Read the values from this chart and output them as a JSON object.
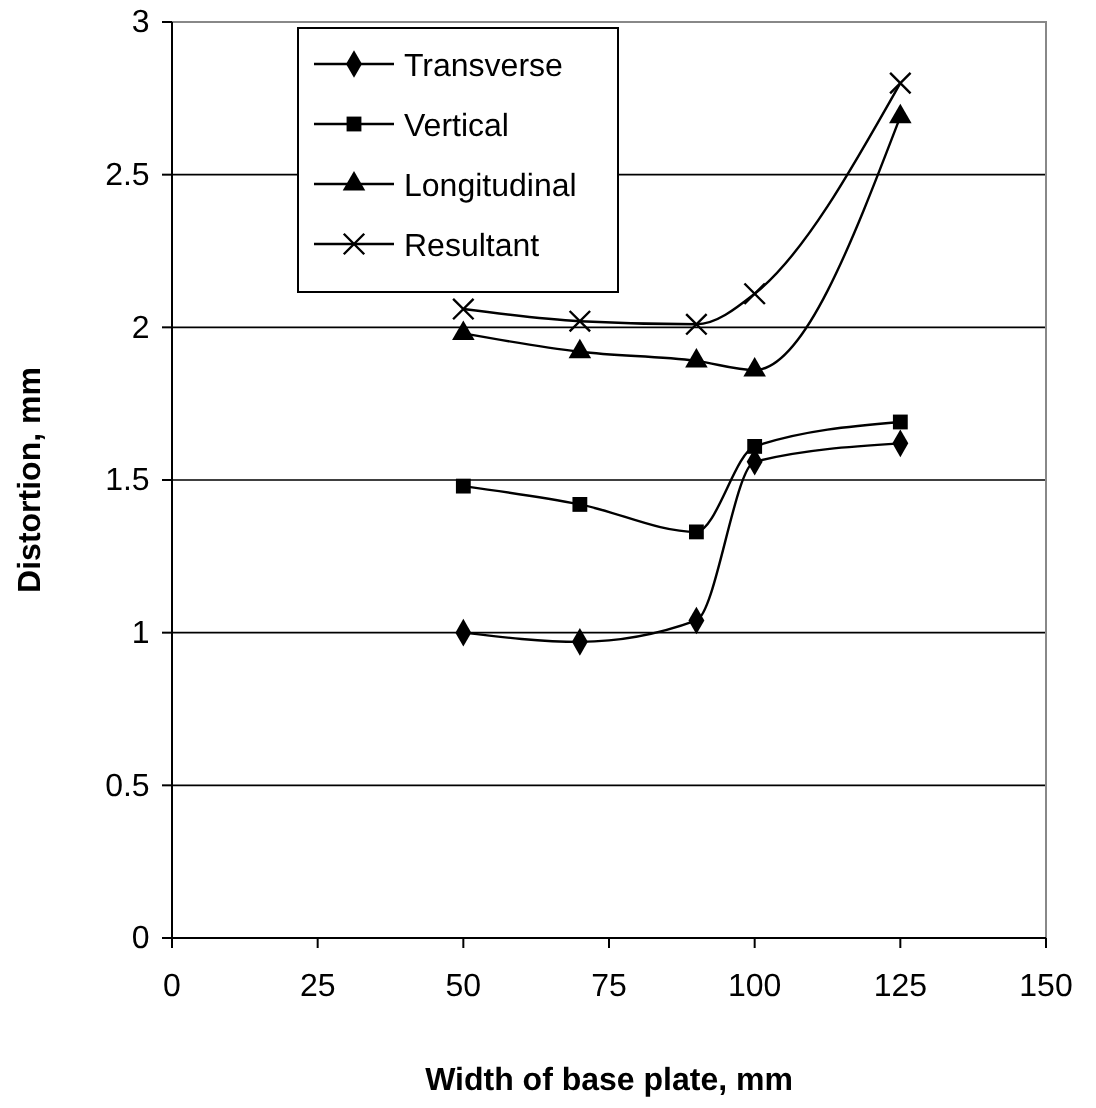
{
  "chart_data": {
    "type": "line",
    "xlabel": "Width of base plate, mm",
    "ylabel": "Distortion, mm",
    "x": [
      50,
      70,
      90,
      100,
      125
    ],
    "series": [
      {
        "name": "Transverse",
        "color": "#000000",
        "marker": "diamond",
        "values": [
          1.0,
          0.97,
          1.04,
          1.56,
          1.62
        ]
      },
      {
        "name": "Vertical",
        "color": "#000000",
        "marker": "square",
        "values": [
          1.48,
          1.42,
          1.33,
          1.61,
          1.69
        ]
      },
      {
        "name": "Longitudinal",
        "color": "#000000",
        "marker": "triangle",
        "values": [
          1.98,
          1.92,
          1.89,
          1.86,
          2.69
        ]
      },
      {
        "name": "Resultant",
        "color": "#000000",
        "marker": "cross",
        "values": [
          2.06,
          2.02,
          2.01,
          2.11,
          2.8
        ]
      }
    ],
    "xlim": [
      0,
      150
    ],
    "xticks": [
      0,
      25,
      50,
      75,
      100,
      125,
      150
    ],
    "ylim": [
      0,
      3
    ],
    "yticks": [
      0,
      0.5,
      1,
      1.5,
      2,
      2.5,
      3
    ],
    "grid": "y",
    "legend": "top left",
    "line_style": "solid"
  }
}
